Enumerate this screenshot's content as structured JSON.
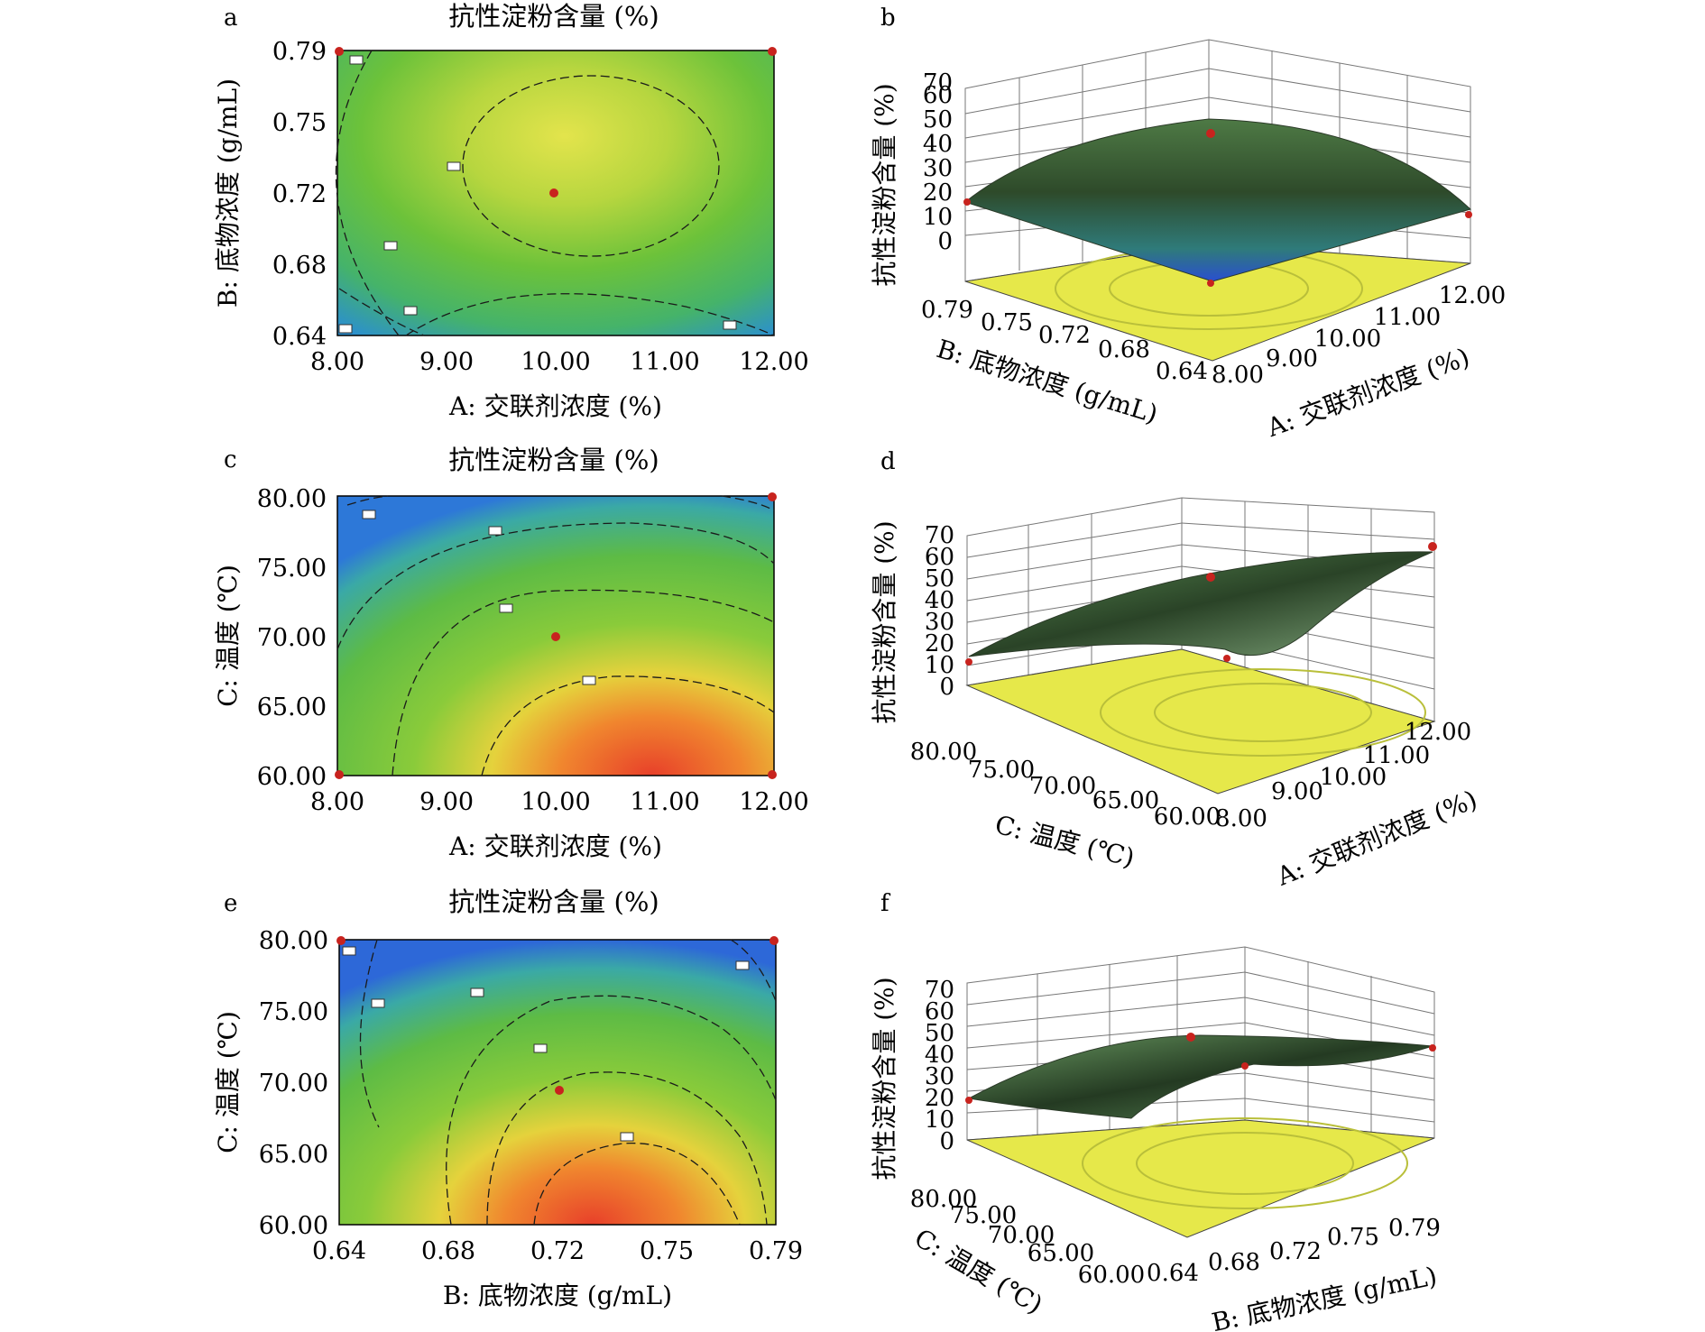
{
  "colors": {
    "contour_low": "#2f6fd0",
    "contour_mid": "#5fbf3a",
    "contour_high_yellow": "#dfe24a",
    "contour_high_red": "#e8462a",
    "surface_dark": "#1f3a1e",
    "surface_light": "#6ea86a",
    "base_yellow": "#e6e84a",
    "design_point": "#c8231e"
  },
  "panels": {
    "a": {
      "letter": "a",
      "title": "抗性淀粉含量 (%)",
      "xlabel": "A: 交联剂浓度 (%)",
      "ylabel": "B: 底物浓度 (g/mL)",
      "xticks": [
        "8.00",
        "9.00",
        "10.00",
        "11.00",
        "12.00"
      ],
      "yticks": [
        "0.64",
        "0.68",
        "0.72",
        "0.75",
        "0.79"
      ]
    },
    "b": {
      "letter": "b",
      "zlabel": "抗性淀粉含量 (%)",
      "zticks": [
        "0",
        "10",
        "20",
        "30",
        "40",
        "50",
        "60",
        "70"
      ],
      "left_label": "B: 底物浓度 (g/mL)",
      "left_ticks": [
        "0.79",
        "0.75",
        "0.72",
        "0.68",
        "0.64"
      ],
      "right_label": "A: 交联剂浓度 (%)",
      "right_ticks": [
        "8.00",
        "9.00",
        "10.00",
        "11.00",
        "12.00"
      ]
    },
    "c": {
      "letter": "c",
      "title": "抗性淀粉含量 (%)",
      "xlabel": "A: 交联剂浓度 (%)",
      "ylabel": "C: 温度 (℃)",
      "xticks": [
        "8.00",
        "9.00",
        "10.00",
        "11.00",
        "12.00"
      ],
      "yticks": [
        "60.00",
        "65.00",
        "70.00",
        "75.00",
        "80.00"
      ]
    },
    "d": {
      "letter": "d",
      "zlabel": "抗性淀粉含量 (%)",
      "zticks": [
        "0",
        "10",
        "20",
        "30",
        "40",
        "50",
        "60",
        "70"
      ],
      "left_label": "C: 温度 (℃)",
      "left_ticks": [
        "80.00",
        "75.00",
        "70.00",
        "65.00",
        "60.00"
      ],
      "right_label": "A: 交联剂浓度 (%)",
      "right_ticks": [
        "8.00",
        "9.00",
        "10.00",
        "11.00",
        "12.00"
      ]
    },
    "e": {
      "letter": "e",
      "title": "抗性淀粉含量 (%)",
      "xlabel": "B: 底物浓度 (g/mL)",
      "ylabel": "C: 温度 (℃)",
      "xticks": [
        "0.64",
        "0.68",
        "0.72",
        "0.75",
        "0.79"
      ],
      "yticks": [
        "60.00",
        "65.00",
        "70.00",
        "75.00",
        "80.00"
      ]
    },
    "f": {
      "letter": "f",
      "zlabel": "抗性淀粉含量 (%)",
      "zticks": [
        "0",
        "10",
        "20",
        "30",
        "40",
        "50",
        "60",
        "70"
      ],
      "left_label": "C: 温度 (℃)",
      "left_ticks": [
        "80.00",
        "75.00",
        "70.00",
        "65.00",
        "60.00"
      ],
      "right_label": "B: 底物浓度 (g/mL)",
      "right_ticks": [
        "0.64",
        "0.68",
        "0.72",
        "0.75",
        "0.79"
      ]
    }
  },
  "chart_data": [
    {
      "type": "heatmap",
      "panel": "a",
      "title": "抗性淀粉含量 (%)",
      "xlabel": "A: 交联剂浓度 (%)",
      "ylabel": "B: 底物浓度 (g/mL)",
      "xlim": [
        8.0,
        12.0
      ],
      "ylim": [
        0.64,
        0.79
      ],
      "design_points": [
        {
          "x": 10.0,
          "y": 0.72
        },
        {
          "x": 8.0,
          "y": 0.79
        },
        {
          "x": 12.0,
          "y": 0.79
        }
      ],
      "grid": false
    },
    {
      "type": "heatmap",
      "panel": "c",
      "title": "抗性淀粉含量 (%)",
      "xlabel": "A: 交联剂浓度 (%)",
      "ylabel": "C: 温度 (℃)",
      "xlim": [
        8.0,
        12.0
      ],
      "ylim": [
        60.0,
        80.0
      ],
      "design_points": [
        {
          "x": 10.0,
          "y": 70.0
        },
        {
          "x": 12.0,
          "y": 80.0
        },
        {
          "x": 12.0,
          "y": 60.0
        },
        {
          "x": 8.0,
          "y": 60.0
        }
      ],
      "grid": false
    },
    {
      "type": "heatmap",
      "panel": "e",
      "title": "抗性淀粉含量 (%)",
      "xlabel": "B: 底物浓度 (g/mL)",
      "ylabel": "C: 温度 (℃)",
      "xlim": [
        0.64,
        0.79
      ],
      "ylim": [
        60.0,
        80.0
      ],
      "design_points": [
        {
          "x": 0.72,
          "y": 70.0
        },
        {
          "x": 0.64,
          "y": 80.0
        },
        {
          "x": 0.79,
          "y": 80.0
        }
      ],
      "grid": false
    },
    {
      "type": "area",
      "panel": "b",
      "zlim": [
        0,
        70
      ],
      "xlabel": "A: 交联剂浓度 (%)",
      "ylabel": "B: 底物浓度 (g/mL)",
      "zlabel": "抗性淀粉含量 (%)",
      "grid": true
    },
    {
      "type": "area",
      "panel": "d",
      "zlim": [
        0,
        70
      ],
      "xlabel": "A: 交联剂浓度 (%)",
      "ylabel": "C: 温度 (℃)",
      "zlabel": "抗性淀粉含量 (%)",
      "grid": true
    },
    {
      "type": "area",
      "panel": "f",
      "zlim": [
        0,
        70
      ],
      "xlabel": "B: 底物浓度 (g/mL)",
      "ylabel": "C: 温度 (℃)",
      "zlabel": "抗性淀粉含量 (%)",
      "grid": true
    }
  ]
}
